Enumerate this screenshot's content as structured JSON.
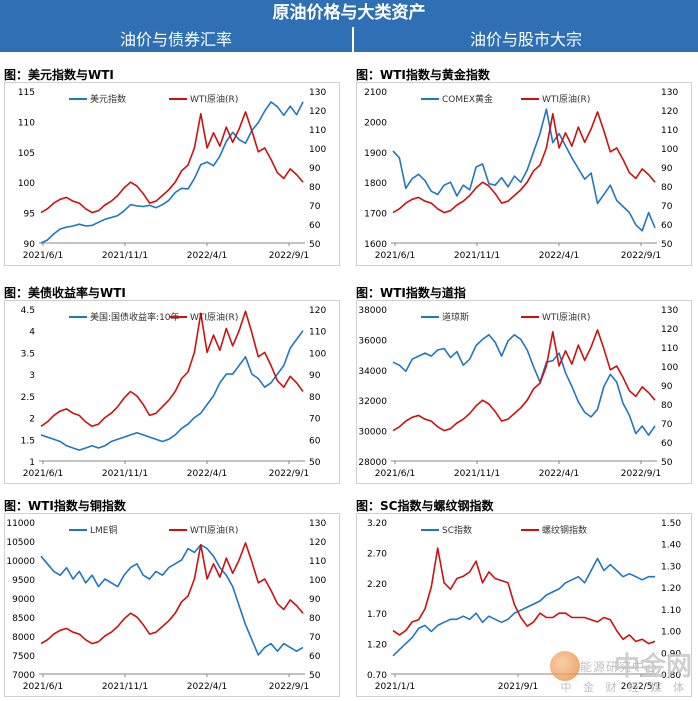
{
  "header": {
    "title": "原油价格与大类资产",
    "left_section": "油价与债券汇率",
    "right_section": "油价与股市大宗"
  },
  "watermark": {
    "brand": "中金网",
    "sub1": "能源研究中心",
    "sub2": "中 金 财 经 媒 体"
  },
  "colors": {
    "header_bg": "#2f6fb3",
    "blue_series": "#1f77c0",
    "red_series": "#cc1111"
  },
  "chart_data": [
    {
      "id": "usd",
      "type": "line",
      "title": "图：美元指数与WTI",
      "x_ticks": [
        "2021/6/1",
        "2021/11/1",
        "2022/4/1",
        "2022/9/1"
      ],
      "left_axis": {
        "min": 90,
        "max": 115,
        "ticks": [
          "90",
          "95",
          "100",
          "105",
          "110",
          "115"
        ]
      },
      "right_axis": {
        "min": 50,
        "max": 130,
        "ticks": [
          "50",
          "60",
          "70",
          "80",
          "90",
          "100",
          "110",
          "120",
          "130"
        ]
      },
      "series": [
        {
          "name": "美元指数",
          "axis": "left",
          "color": "#1f77c0",
          "values": [
            90,
            90.5,
            91.5,
            92.3,
            92.6,
            92.8,
            93.1,
            92.8,
            92.9,
            93.4,
            93.9,
            94.2,
            94.5,
            95.3,
            96.3,
            96.1,
            96.0,
            96.2,
            95.8,
            96.3,
            97.0,
            98.3,
            99.0,
            98.9,
            100.6,
            102.9,
            103.3,
            102.7,
            104.3,
            106.7,
            108.2,
            107.0,
            106.4,
            108.5,
            109.8,
            111.7,
            113.2,
            112.4,
            111.0,
            112.5,
            111.1,
            113.2
          ]
        },
        {
          "name": "WTI原油(R)",
          "axis": "right",
          "color": "#cc1111",
          "values": [
            66,
            68,
            71,
            73,
            74,
            72,
            71,
            68,
            66,
            67,
            70,
            72,
            75,
            79,
            82,
            80,
            76,
            71,
            72,
            75,
            78,
            82,
            88,
            91,
            100,
            118,
            100,
            108,
            101,
            111,
            103,
            110,
            119,
            109,
            98,
            100,
            94,
            87,
            84,
            89,
            86,
            82
          ]
        }
      ]
    },
    {
      "id": "gold",
      "type": "line",
      "title": "图：WTI指数与黄金指数",
      "x_ticks": [
        "2021/6/1",
        "2021/11/1",
        "2022/4/1",
        "2022/9/1"
      ],
      "left_axis": {
        "min": 1600,
        "max": 2100,
        "ticks": [
          "1600",
          "1700",
          "1800",
          "1900",
          "2000",
          "2100"
        ]
      },
      "right_axis": {
        "min": 50,
        "max": 130,
        "ticks": [
          "50",
          "60",
          "70",
          "80",
          "90",
          "100",
          "110",
          "120",
          "130"
        ]
      },
      "series": [
        {
          "name": "COMEX黄金",
          "axis": "left",
          "color": "#1f77c0",
          "values": [
            1903,
            1880,
            1780,
            1812,
            1826,
            1805,
            1770,
            1760,
            1790,
            1800,
            1755,
            1790,
            1775,
            1850,
            1860,
            1795,
            1790,
            1815,
            1785,
            1820,
            1800,
            1840,
            1900,
            1960,
            2040,
            1930,
            1960,
            1920,
            1880,
            1845,
            1810,
            1830,
            1730,
            1760,
            1790,
            1740,
            1720,
            1700,
            1660,
            1640,
            1700,
            1650
          ]
        },
        {
          "name": "WTI原油(R)",
          "axis": "right",
          "color": "#cc1111",
          "values": [
            66,
            68,
            71,
            73,
            74,
            72,
            71,
            68,
            66,
            67,
            70,
            72,
            75,
            79,
            82,
            80,
            76,
            71,
            72,
            75,
            78,
            82,
            88,
            91,
            100,
            118,
            100,
            108,
            101,
            111,
            103,
            110,
            119,
            109,
            98,
            100,
            94,
            87,
            84,
            89,
            86,
            82
          ]
        }
      ]
    },
    {
      "id": "treasury",
      "type": "line",
      "title": "图：美债收益率与WTI",
      "x_ticks": [
        "2021/6/1",
        "2021/11/1",
        "2022/4/1",
        "2022/9/1"
      ],
      "left_axis": {
        "min": 1,
        "max": 4.5,
        "ticks": [
          "1",
          "1.5",
          "2",
          "2.5",
          "3",
          "3.5",
          "4",
          "4.5"
        ]
      },
      "right_axis": {
        "min": 50,
        "max": 120,
        "ticks": [
          "50",
          "60",
          "70",
          "80",
          "90",
          "100",
          "110",
          "120"
        ]
      },
      "series": [
        {
          "name": "美国:国债收益率:10年",
          "axis": "left",
          "color": "#1f77c0",
          "values": [
            1.6,
            1.55,
            1.5,
            1.45,
            1.35,
            1.3,
            1.25,
            1.3,
            1.35,
            1.3,
            1.35,
            1.45,
            1.5,
            1.55,
            1.6,
            1.65,
            1.6,
            1.55,
            1.5,
            1.45,
            1.5,
            1.6,
            1.75,
            1.85,
            2.0,
            2.1,
            2.3,
            2.5,
            2.8,
            3.0,
            3.0,
            3.2,
            3.4,
            3.0,
            2.9,
            2.7,
            2.8,
            3.0,
            3.2,
            3.6,
            3.8,
            4.0
          ]
        },
        {
          "name": "WTI原油(R)",
          "axis": "right",
          "color": "#cc1111",
          "values": [
            66,
            68,
            71,
            73,
            74,
            72,
            71,
            68,
            66,
            67,
            70,
            72,
            75,
            79,
            82,
            80,
            76,
            71,
            72,
            75,
            78,
            82,
            88,
            91,
            100,
            118,
            100,
            108,
            101,
            111,
            103,
            110,
            119,
            109,
            98,
            100,
            94,
            87,
            84,
            89,
            86,
            82
          ]
        }
      ]
    },
    {
      "id": "dow",
      "type": "line",
      "title": "图：WTI指数与道指",
      "x_ticks": [
        "2021/6/1",
        "2021/11/1",
        "2022/4/1",
        "2022/9/1"
      ],
      "left_axis": {
        "min": 28000,
        "max": 38000,
        "ticks": [
          "28000",
          "30000",
          "32000",
          "34000",
          "36000",
          "38000"
        ]
      },
      "right_axis": {
        "min": 50,
        "max": 130,
        "ticks": [
          "50",
          "60",
          "70",
          "80",
          "90",
          "100",
          "110",
          "120",
          "130"
        ]
      },
      "series": [
        {
          "name": "道琼斯",
          "axis": "left",
          "color": "#1f77c0",
          "values": [
            34500,
            34300,
            33900,
            34700,
            34900,
            35100,
            34900,
            35300,
            35400,
            34800,
            35200,
            34300,
            34700,
            35600,
            36000,
            36300,
            35800,
            34900,
            35900,
            36300,
            36000,
            35300,
            34200,
            33200,
            34500,
            34600,
            35100,
            33800,
            32900,
            31900,
            31200,
            30900,
            31400,
            32900,
            33700,
            33200,
            31800,
            31000,
            29800,
            30300,
            29700,
            30300
          ]
        },
        {
          "name": "WTI原油(R)",
          "axis": "right",
          "color": "#cc1111",
          "values": [
            66,
            68,
            71,
            73,
            74,
            72,
            71,
            68,
            66,
            67,
            70,
            72,
            75,
            79,
            82,
            80,
            76,
            71,
            72,
            75,
            78,
            82,
            88,
            91,
            100,
            118,
            100,
            108,
            101,
            111,
            103,
            110,
            119,
            109,
            98,
            100,
            94,
            87,
            84,
            89,
            86,
            82
          ]
        }
      ]
    },
    {
      "id": "copper",
      "type": "line",
      "title": "图：WTI指数与铜指数",
      "x_ticks": [
        "2021/6/1",
        "2021/11/1",
        "2022/4/1",
        "2022/9/1"
      ],
      "left_axis": {
        "min": 7000,
        "max": 11000,
        "ticks": [
          "7000",
          "7500",
          "8000",
          "8500",
          "9000",
          "9500",
          "10000",
          "10500",
          "11000"
        ]
      },
      "right_axis": {
        "min": 50,
        "max": 130,
        "ticks": [
          "50",
          "60",
          "70",
          "80",
          "90",
          "100",
          "110",
          "120",
          "130"
        ]
      },
      "series": [
        {
          "name": "LME铜",
          "axis": "left",
          "color": "#1f77c0",
          "values": [
            10100,
            9900,
            9700,
            9600,
            9800,
            9500,
            9700,
            9400,
            9600,
            9300,
            9500,
            9400,
            9300,
            9600,
            9800,
            9900,
            9600,
            9500,
            9700,
            9600,
            9800,
            9900,
            10000,
            10300,
            10200,
            10400,
            10300,
            10100,
            9800,
            9600,
            9300,
            8800,
            8300,
            7900,
            7500,
            7700,
            7800,
            7600,
            7800,
            7700,
            7600,
            7700
          ]
        },
        {
          "name": "WTI原油(R)",
          "axis": "right",
          "color": "#cc1111",
          "values": [
            66,
            68,
            71,
            73,
            74,
            72,
            71,
            68,
            66,
            67,
            70,
            72,
            75,
            79,
            82,
            80,
            76,
            71,
            72,
            75,
            78,
            82,
            88,
            91,
            100,
            118,
            100,
            108,
            101,
            111,
            103,
            110,
            119,
            109,
            98,
            100,
            94,
            87,
            84,
            89,
            86,
            82
          ]
        }
      ]
    },
    {
      "id": "rebar",
      "type": "line",
      "title": "图：SC指数与螺纹钢指数",
      "x_ticks": [
        "2021/1/1",
        "2021/9/1",
        "2022/5/1"
      ],
      "left_axis": {
        "min": 0.7,
        "max": 3.2,
        "ticks": [
          "0.70",
          "1.20",
          "1.70",
          "2.20",
          "2.70",
          "3.20"
        ]
      },
      "right_axis": {
        "min": 0.8,
        "max": 1.5,
        "ticks": [
          "0.80",
          "0.90",
          "1.00",
          "1.10",
          "1.20",
          "1.30",
          "1.40",
          "1.50"
        ]
      },
      "series": [
        {
          "name": "SC指数",
          "axis": "left",
          "color": "#1f77c0",
          "values": [
            1.0,
            1.1,
            1.2,
            1.3,
            1.45,
            1.5,
            1.4,
            1.5,
            1.55,
            1.6,
            1.6,
            1.65,
            1.6,
            1.7,
            1.55,
            1.65,
            1.6,
            1.55,
            1.6,
            1.7,
            1.75,
            1.8,
            1.85,
            1.9,
            2.0,
            2.05,
            2.1,
            2.2,
            2.25,
            2.3,
            2.2,
            2.4,
            2.6,
            2.4,
            2.5,
            2.4,
            2.3,
            2.35,
            2.3,
            2.25,
            2.3,
            2.3
          ]
        },
        {
          "name": "螺纹钢指数",
          "axis": "right",
          "color": "#cc1111",
          "values": [
            1.0,
            0.98,
            1.0,
            1.04,
            1.05,
            1.1,
            1.2,
            1.38,
            1.22,
            1.19,
            1.24,
            1.25,
            1.27,
            1.32,
            1.22,
            1.27,
            1.24,
            1.23,
            1.22,
            1.12,
            1.06,
            1.02,
            1.04,
            1.08,
            1.06,
            1.06,
            1.08,
            1.08,
            1.06,
            1.06,
            1.06,
            1.05,
            1.04,
            1.06,
            1.05,
            1.0,
            0.96,
            0.98,
            0.95,
            0.96,
            0.94,
            0.95
          ]
        }
      ]
    }
  ]
}
